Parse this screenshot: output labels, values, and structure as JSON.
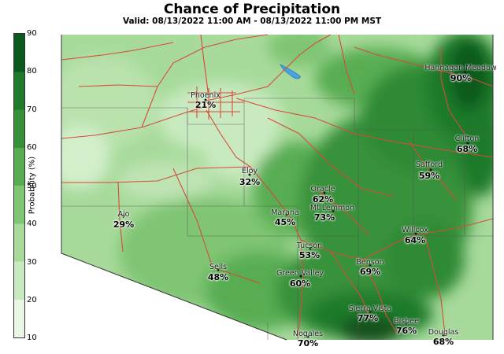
{
  "title": "Chance of Precipitation",
  "subtitle": "Valid: 08/13/2022 11:00 AM - 08/13/2022 11:00 PM MST",
  "colorbar": {
    "label": "Probability (%)",
    "ticks": [
      "90",
      "80",
      "70",
      "60",
      "50",
      "40",
      "30",
      "20",
      "10"
    ],
    "colors": [
      "#0b5a1d",
      "#1f7a2c",
      "#37913a",
      "#58ad52",
      "#7fc573",
      "#a7da9b",
      "#c9eac0",
      "#e9f7e4"
    ]
  },
  "cities": [
    {
      "name": "Hannagan Meadow",
      "value": "90%"
    },
    {
      "name": "Phoenix",
      "value": "21%"
    },
    {
      "name": "Clifton",
      "value": "68%"
    },
    {
      "name": "Safford",
      "value": "59%"
    },
    {
      "name": "Eloy",
      "value": "32%"
    },
    {
      "name": "Oracle",
      "value": "62%"
    },
    {
      "name": "Mt Lemmon",
      "value": "73%"
    },
    {
      "name": "Marana",
      "value": "45%"
    },
    {
      "name": "Ajo",
      "value": "29%"
    },
    {
      "name": "Willcox",
      "value": "64%"
    },
    {
      "name": "Tucson",
      "value": "53%"
    },
    {
      "name": "Sells",
      "value": "48%"
    },
    {
      "name": "Benson",
      "value": "69%"
    },
    {
      "name": "Green Valley",
      "value": "60%"
    },
    {
      "name": "Sierra Vista",
      "value": "77%"
    },
    {
      "name": "Bisbee",
      "value": "76%"
    },
    {
      "name": "Nogales",
      "value": "70%"
    },
    {
      "name": "Douglas",
      "value": "68%"
    }
  ]
}
